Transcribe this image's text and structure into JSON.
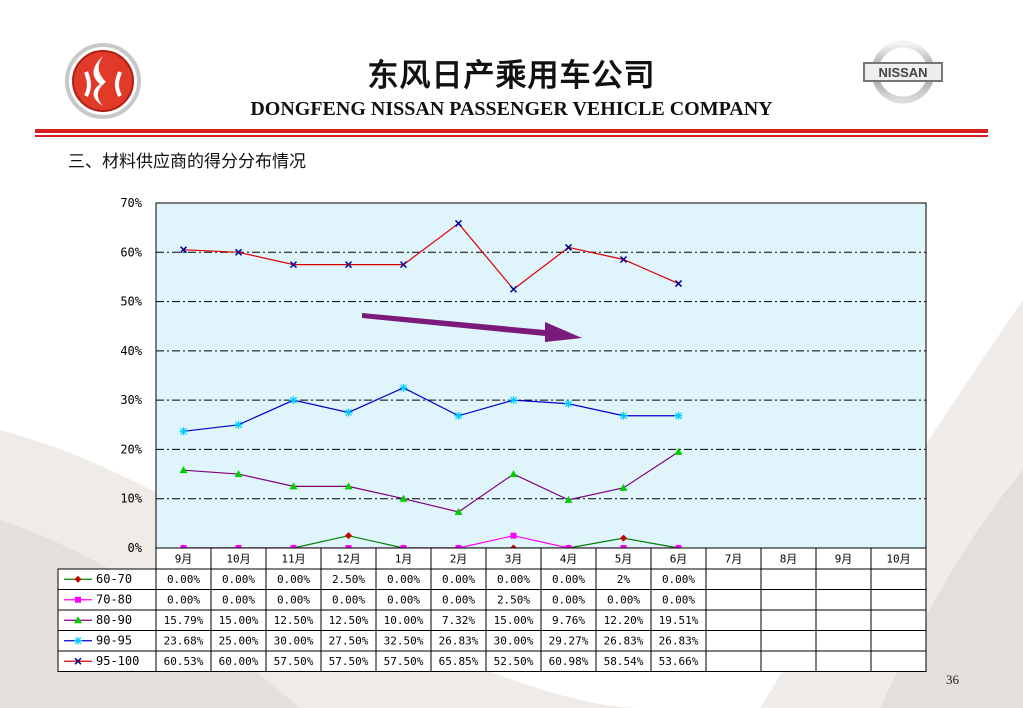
{
  "header": {
    "title_cn": "东风日产乘用车公司",
    "title_en": "DONGFENG NISSAN PASSENGER VEHICLE COMPANY",
    "subtitle": "三、材料供应商的得分分布情况",
    "right_logo_text": "NISSAN",
    "page_number": "36"
  },
  "colors": {
    "rule": "#d92020",
    "plot_bg": "#dff5fb",
    "trend_arrow": "#7a1a7a"
  },
  "chart_data": {
    "type": "line",
    "categories": [
      "9月",
      "10月",
      "11月",
      "12月",
      "1月",
      "2月",
      "3月",
      "4月",
      "5月",
      "6月",
      "7月",
      "8月",
      "9月",
      "10月"
    ],
    "ylim": [
      0,
      70
    ],
    "yticks": [
      "0%",
      "10%",
      "20%",
      "30%",
      "40%",
      "50%",
      "60%",
      "70%"
    ],
    "grid": true,
    "annotation": "downward trend arrow over 95-100 series",
    "series": [
      {
        "name": "60-70",
        "color": "#008000",
        "marker_color": "#cc0000",
        "marker": "diamond",
        "values": [
          0,
          0,
          0,
          2.5,
          0,
          0,
          0,
          0,
          2,
          0,
          null,
          null,
          null,
          null
        ],
        "labels": [
          "0.00%",
          "0.00%",
          "0.00%",
          "2.50%",
          "0.00%",
          "0.00%",
          "0.00%",
          "0.00%",
          "2%",
          "0.00%",
          "",
          "",
          "",
          ""
        ]
      },
      {
        "name": "70-80",
        "color": "#ff00ff",
        "marker_color": "#ff00ff",
        "marker": "square",
        "values": [
          0,
          0,
          0,
          0,
          0,
          0,
          2.5,
          0,
          0,
          0,
          null,
          null,
          null,
          null
        ],
        "labels": [
          "0.00%",
          "0.00%",
          "0.00%",
          "0.00%",
          "0.00%",
          "0.00%",
          "2.50%",
          "0.00%",
          "0.00%",
          "0.00%",
          "",
          "",
          "",
          ""
        ]
      },
      {
        "name": "80-90",
        "color": "#800080",
        "marker_color": "#00cc00",
        "marker": "triangle",
        "values": [
          15.79,
          15.0,
          12.5,
          12.5,
          10.0,
          7.32,
          15.0,
          9.76,
          12.2,
          19.51,
          null,
          null,
          null,
          null
        ],
        "labels": [
          "15.79%",
          "15.00%",
          "12.50%",
          "12.50%",
          "10.00%",
          "7.32%",
          "15.00%",
          "9.76%",
          "12.20%",
          "19.51%",
          "",
          "",
          "",
          ""
        ]
      },
      {
        "name": "90-95",
        "color": "#0000cc",
        "marker_color": "#00ccff",
        "marker": "star",
        "values": [
          23.68,
          25.0,
          30.0,
          27.5,
          32.5,
          26.83,
          30.0,
          29.27,
          26.83,
          26.83,
          null,
          null,
          null,
          null
        ],
        "labels": [
          "23.68%",
          "25.00%",
          "30.00%",
          "27.50%",
          "32.50%",
          "26.83%",
          "30.00%",
          "29.27%",
          "26.83%",
          "26.83%",
          "",
          "",
          "",
          ""
        ]
      },
      {
        "name": "95-100",
        "color": "#dd0000",
        "marker_color": "#000099",
        "marker": "x",
        "values": [
          60.53,
          60.0,
          57.5,
          57.5,
          57.5,
          65.85,
          52.5,
          60.98,
          58.54,
          53.66,
          null,
          null,
          null,
          null
        ],
        "labels": [
          "60.53%",
          "60.00%",
          "57.50%",
          "57.50%",
          "57.50%",
          "65.85%",
          "52.50%",
          "60.98%",
          "58.54%",
          "53.66%",
          "",
          "",
          "",
          ""
        ]
      }
    ]
  }
}
